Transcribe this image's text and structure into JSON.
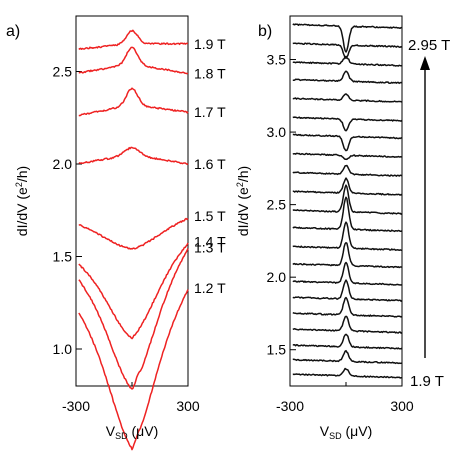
{
  "figure": {
    "panel_a_label": "a)",
    "panel_b_label": "b)"
  },
  "chart_data": [
    {
      "type": "line",
      "panel": "a",
      "xlabel": "V_SD (μV)",
      "ylabel": "dI/dV (e²/h)",
      "xlim": [
        -300,
        300
      ],
      "ylim": [
        0.8,
        2.8
      ],
      "x_ticks": [
        -300,
        300
      ],
      "x_tick_labels": [
        "-300",
        "300"
      ],
      "y_ticks": [
        1.0,
        1.5,
        2.0,
        2.5
      ],
      "y_tick_labels": [
        "1.0",
        "1.5",
        "2.0",
        "2.5"
      ],
      "line_color": "#ee2222",
      "grid": false,
      "series": [
        {
          "name": "1.2 T",
          "center": 0.78,
          "kind": "dip",
          "amp": 0.32,
          "width": 110,
          "slope_l": 0.45,
          "slope_r": 0.55,
          "bump": 0.015
        },
        {
          "name": "1.3 T",
          "center": 1.05,
          "kind": "dip",
          "amp": 0.27,
          "width": 110,
          "slope_l": 0.35,
          "slope_r": 0.5,
          "bump": 0.02
        },
        {
          "name": "1.4 T",
          "center": 1.28,
          "kind": "dip",
          "amp": 0.22,
          "width": 120,
          "slope_l": 0.2,
          "slope_r": 0.3,
          "bump": 0.0
        },
        {
          "name": "1.5 T",
          "center": 1.64,
          "kind": "dip",
          "amp": 0.1,
          "width": 150,
          "slope_l": 0.05,
          "slope_r": 0.08,
          "bump": 0.0
        },
        {
          "name": "1.6 T",
          "center": 2.05,
          "kind": "bump",
          "amp": 0.04,
          "width": 40,
          "slope_l": -0.05,
          "slope_r": -0.05,
          "bump": 0.0
        },
        {
          "name": "1.7 T",
          "center": 2.32,
          "kind": "bump",
          "amp": 0.09,
          "width": 30,
          "slope_l": -0.06,
          "slope_r": -0.04,
          "bump": 0.0
        },
        {
          "name": "1.8 T",
          "center": 2.54,
          "kind": "bump",
          "amp": 0.09,
          "width": 30,
          "slope_l": -0.05,
          "slope_r": -0.05,
          "bump": 0.0
        },
        {
          "name": "1.9 T",
          "center": 2.65,
          "kind": "bump",
          "amp": 0.07,
          "width": 30,
          "slope_l": -0.03,
          "slope_r": 0.0,
          "bump": 0.0
        }
      ]
    },
    {
      "type": "line",
      "panel": "b",
      "xlabel": "V_SD (μV)",
      "ylabel": "dI/dV (e²/h)",
      "xlim": [
        -300,
        300
      ],
      "ylim": [
        1.25,
        3.8
      ],
      "x_ticks": [
        -300,
        300
      ],
      "x_tick_labels": [
        "-300",
        "300"
      ],
      "y_ticks": [
        1.5,
        2.0,
        2.5,
        3.0,
        3.5
      ],
      "y_tick_labels": [
        "1.5",
        "2.0",
        "2.5",
        "3.0",
        "3.5"
      ],
      "line_color": "#111111",
      "grid": false,
      "field_start_label": "1.9 T",
      "field_end_label": "2.95 T",
      "series": [
        {
          "offset": 1.32,
          "amp": 0.05
        },
        {
          "offset": 1.42,
          "amp": 0.07
        },
        {
          "offset": 1.52,
          "amp": 0.09
        },
        {
          "offset": 1.63,
          "amp": 0.1
        },
        {
          "offset": 1.74,
          "amp": 0.12
        },
        {
          "offset": 1.85,
          "amp": 0.13
        },
        {
          "offset": 1.96,
          "amp": 0.14
        },
        {
          "offset": 2.08,
          "amp": 0.16
        },
        {
          "offset": 2.2,
          "amp": 0.18
        },
        {
          "offset": 2.33,
          "amp": 0.22
        },
        {
          "offset": 2.45,
          "amp": 0.18
        },
        {
          "offset": 2.58,
          "amp": 0.1
        },
        {
          "offset": 2.71,
          "amp": 0.06
        },
        {
          "offset": 2.84,
          "amp": -0.03
        },
        {
          "offset": 2.97,
          "amp": -0.1
        },
        {
          "offset": 3.09,
          "amp": -0.08
        },
        {
          "offset": 3.22,
          "amp": 0.04
        },
        {
          "offset": 3.35,
          "amp": 0.07
        },
        {
          "offset": 3.47,
          "amp": 0.05
        },
        {
          "offset": 3.6,
          "amp": -0.09
        },
        {
          "offset": 3.73,
          "amp": -0.18
        }
      ]
    }
  ]
}
